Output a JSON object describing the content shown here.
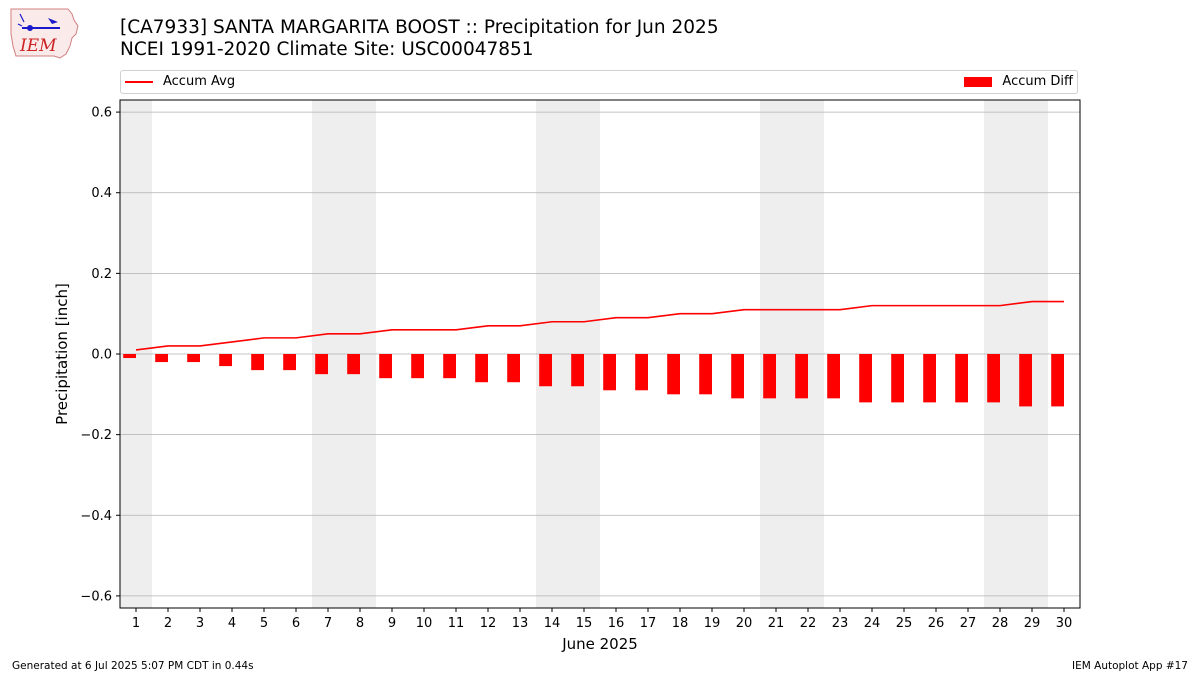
{
  "title_line1": "[CA7933] SANTA MARGARITA BOOST :: Precipitation for Jun 2025",
  "title_line2": "NCEI 1991-2020 Climate Site: USC00047851",
  "logo_text": "IEM",
  "footer_left": "Generated at 6 Jul 2025 5:07 PM CDT in 0.44s",
  "footer_right": "IEM Autoplot App #17",
  "colors": {
    "series": "#ff0000",
    "weekend_shade": "#eeeeee",
    "grid": "#b0b0b0"
  },
  "chart_data": {
    "type": "bar",
    "xlabel": "June 2025",
    "ylabel": "Precipitation [inch]",
    "ylim": [
      -0.63,
      0.63
    ],
    "yticks": [
      -0.6,
      -0.4,
      -0.2,
      0.0,
      0.2,
      0.4,
      0.6
    ],
    "ytick_labels": [
      "−0.6",
      "−0.4",
      "−0.2",
      "0.0",
      "0.2",
      "0.4",
      "0.6"
    ],
    "categories": [
      "1",
      "2",
      "3",
      "4",
      "5",
      "6",
      "7",
      "8",
      "9",
      "10",
      "11",
      "12",
      "13",
      "14",
      "15",
      "16",
      "17",
      "18",
      "19",
      "20",
      "21",
      "22",
      "23",
      "24",
      "25",
      "26",
      "27",
      "28",
      "29",
      "30"
    ],
    "grid": "horizontal",
    "legend_position": "top",
    "weekend_days": [
      1,
      7,
      8,
      14,
      15,
      21,
      22,
      28,
      29
    ],
    "series": [
      {
        "name": "Accum Avg",
        "type": "line",
        "values": [
          0.01,
          0.02,
          0.02,
          0.03,
          0.04,
          0.04,
          0.05,
          0.05,
          0.06,
          0.06,
          0.06,
          0.07,
          0.07,
          0.08,
          0.08,
          0.09,
          0.09,
          0.1,
          0.1,
          0.11,
          0.11,
          0.11,
          0.11,
          0.12,
          0.12,
          0.12,
          0.12,
          0.12,
          0.13,
          0.13
        ]
      },
      {
        "name": "Accum Diff",
        "type": "bar",
        "values": [
          -0.01,
          -0.02,
          -0.02,
          -0.03,
          -0.04,
          -0.04,
          -0.05,
          -0.05,
          -0.06,
          -0.06,
          -0.06,
          -0.07,
          -0.07,
          -0.08,
          -0.08,
          -0.09,
          -0.09,
          -0.1,
          -0.1,
          -0.11,
          -0.11,
          -0.11,
          -0.11,
          -0.12,
          -0.12,
          -0.12,
          -0.12,
          -0.12,
          -0.13,
          -0.13
        ]
      }
    ]
  }
}
